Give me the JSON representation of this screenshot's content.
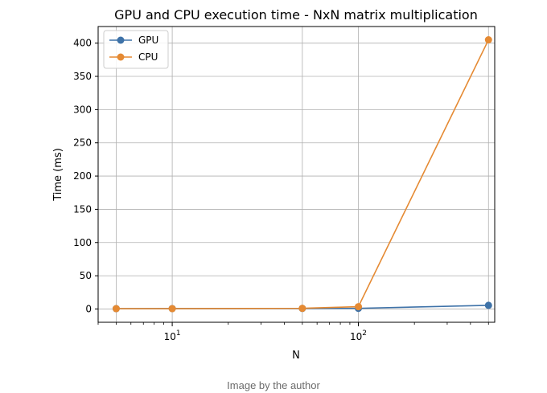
{
  "caption": "Image by the author",
  "chart_data": {
    "type": "line",
    "title": "GPU and CPU execution time - NxN matrix multiplication",
    "xlabel": "N",
    "ylabel": "Time (ms)",
    "x_scale": "log",
    "x": [
      5,
      10,
      50,
      100,
      500
    ],
    "xlim": [
      4,
      540
    ],
    "ylim": [
      -20,
      425
    ],
    "x_ticks": [
      {
        "value": 10,
        "base": "10",
        "exp": "1"
      },
      {
        "value": 100,
        "base": "10",
        "exp": "2"
      }
    ],
    "y_ticks": [
      0,
      50,
      100,
      150,
      200,
      250,
      300,
      350,
      400
    ],
    "grid": true,
    "legend_position": "top-left",
    "series": [
      {
        "name": "GPU",
        "color": "#3e72a8",
        "values": [
          0.5,
          0.6,
          0.8,
          1.0,
          5.5
        ]
      },
      {
        "name": "CPU",
        "color": "#e58a33",
        "values": [
          0.5,
          0.5,
          1.0,
          3.5,
          405
        ]
      }
    ]
  }
}
